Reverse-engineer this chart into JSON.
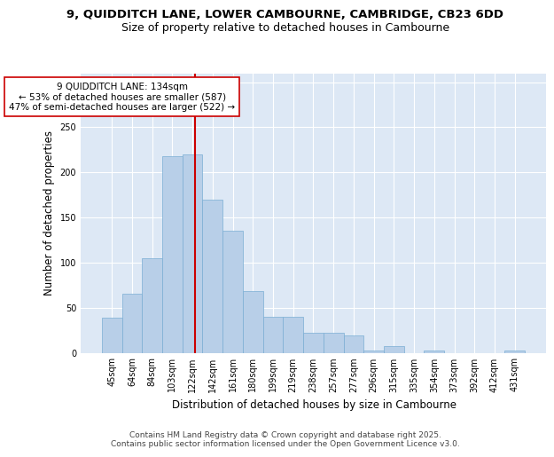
{
  "title_line1": "9, QUIDDITCH LANE, LOWER CAMBOURNE, CAMBRIDGE, CB23 6DD",
  "title_line2": "Size of property relative to detached houses in Cambourne",
  "xlabel": "Distribution of detached houses by size in Cambourne",
  "ylabel": "Number of detached properties",
  "categories": [
    "45sqm",
    "64sqm",
    "84sqm",
    "103sqm",
    "122sqm",
    "142sqm",
    "161sqm",
    "180sqm",
    "199sqm",
    "219sqm",
    "238sqm",
    "257sqm",
    "277sqm",
    "296sqm",
    "315sqm",
    "335sqm",
    "354sqm",
    "373sqm",
    "392sqm",
    "412sqm",
    "431sqm"
  ],
  "values": [
    39,
    65,
    105,
    218,
    220,
    170,
    135,
    68,
    40,
    40,
    22,
    22,
    19,
    2,
    7,
    0,
    2,
    0,
    0,
    0,
    2
  ],
  "bar_color": "#b8cfe8",
  "bar_edge_color": "#7aaed4",
  "vline_color": "#cc0000",
  "annotation_text": "9 QUIDDITCH LANE: 134sqm\n← 53% of detached houses are smaller (587)\n47% of semi-detached houses are larger (522) →",
  "annotation_box_color": "#ffffff",
  "annotation_box_edge": "#cc0000",
  "ylim": [
    0,
    310
  ],
  "yticks": [
    0,
    50,
    100,
    150,
    200,
    250,
    300
  ],
  "background_color": "#dde8f5",
  "grid_color": "#ffffff",
  "footer_text": "Contains HM Land Registry data © Crown copyright and database right 2025.\nContains public sector information licensed under the Open Government Licence v3.0.",
  "title_fontsize": 9.5,
  "subtitle_fontsize": 9,
  "tick_fontsize": 7,
  "label_fontsize": 8.5,
  "annotation_fontsize": 7.5,
  "footer_fontsize": 6.5
}
